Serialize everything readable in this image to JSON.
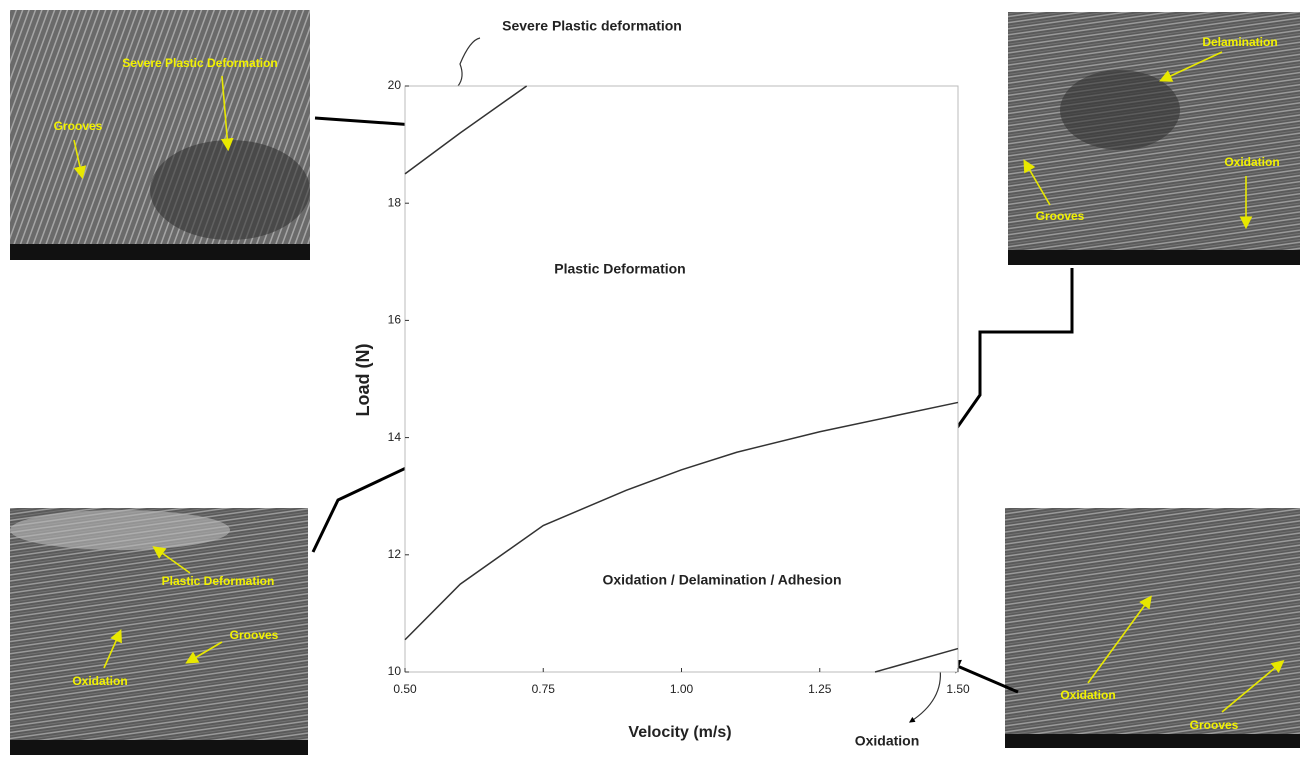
{
  "chart_data": {
    "type": "line",
    "x_label": "Velocity (m/s)",
    "y_label": "Load (N)",
    "xlim": [
      0.5,
      1.5
    ],
    "ylim": [
      10,
      20
    ],
    "xticks": [
      {
        "value": 0.5,
        "label": "0.50"
      },
      {
        "value": 0.75,
        "label": "0.75"
      },
      {
        "value": 1.0,
        "label": "1.00"
      },
      {
        "value": 1.25,
        "label": "1.25"
      },
      {
        "value": 1.5,
        "label": "1.50"
      }
    ],
    "yticks": [
      10,
      12,
      14,
      16,
      18,
      20
    ],
    "grid": false,
    "series": [
      {
        "color": "#333333",
        "x": [
          0.5,
          0.6,
          0.72
        ],
        "values": [
          18.5,
          19.2,
          20
        ]
      },
      {
        "color": "#333333",
        "x": [
          0.5,
          0.6,
          0.75,
          0.9,
          1.0,
          1.1,
          1.25,
          1.4,
          1.5
        ],
        "values": [
          10.55,
          11.5,
          12.5,
          13.1,
          13.45,
          13.75,
          14.1,
          14.4,
          14.6
        ]
      },
      {
        "color": "#333333",
        "x": [
          1.35,
          1.5
        ],
        "values": [
          10,
          10.4
        ]
      }
    ],
    "annotations": [
      "Severe Plastic deformation",
      "Plastic Deformation",
      "Oxidation / Delamination / Adhesion",
      "Oxidation"
    ]
  },
  "images": [
    {
      "labels": [
        "Severe Plastic Deformation",
        "Grooves"
      ]
    },
    {
      "labels": [
        "Delamination",
        "Oxidation",
        "Grooves"
      ]
    },
    {
      "labels": [
        "Plastic Deformation",
        "Grooves",
        "Oxidation"
      ]
    },
    {
      "labels": [
        "Oxidation",
        "Grooves"
      ]
    }
  ]
}
